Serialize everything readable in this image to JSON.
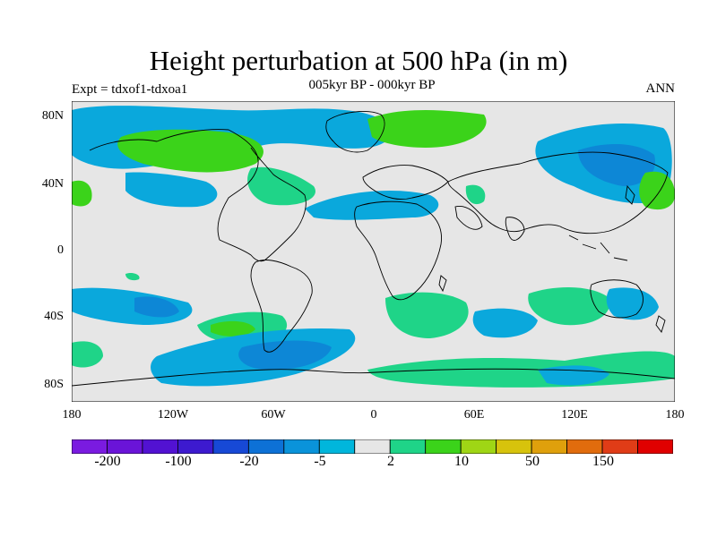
{
  "title": "Height perturbation at 500 hPa (in m)",
  "subtitle": "005kyr BP - 000kyr BP",
  "left_label": "Expt = tdxof1-tdxoa1",
  "right_label": "ANN",
  "colors": {
    "background": "#e6e6e6",
    "neg_light": "#00bfe0",
    "neg_mid": "#0aa8dc",
    "neg_dark": "#0d87d6",
    "pos_light": "#1fd488",
    "pos_mid": "#3bd31a"
  },
  "lat_labels": [
    "80N",
    "40N",
    "0",
    "40S",
    "80S"
  ],
  "lon_labels": [
    "180",
    "120W",
    "60W",
    "0",
    "60E",
    "120E",
    "180"
  ],
  "colorbar": {
    "colors": [
      "#7a1be0",
      "#6a14d8",
      "#5212d2",
      "#3d1acf",
      "#1749d6",
      "#0d71d6",
      "#0a93da",
      "#00b6dc",
      "#e6e6e6",
      "#1fd488",
      "#3bd31a",
      "#9fd615",
      "#d7c30c",
      "#dfa00c",
      "#e16c0d",
      "#e03c17",
      "#e00000"
    ],
    "labels": [
      "-200",
      "-100",
      "-20",
      "-5",
      "2",
      "10",
      "50",
      "150"
    ]
  }
}
